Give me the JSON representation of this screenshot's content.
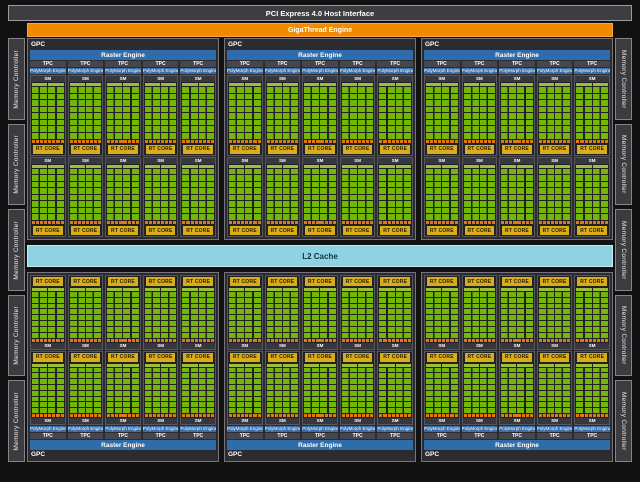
{
  "pci": {
    "label": "PCI Express 4.0 Host Interface"
  },
  "gigathread": {
    "label": "GigaThread Engine"
  },
  "l2": {
    "label": "L2 Cache"
  },
  "memory_controller": {
    "label": "Memory Controller",
    "per_side": 5,
    "sides": [
      "left",
      "right"
    ]
  },
  "gpc": {
    "label": "GPC",
    "raster_label": "Raster Engine",
    "tpc_label": "TPC",
    "polymorph_label": "PolyMorph Engine",
    "sm_label": "SM",
    "rt_core_label": "RT CORE",
    "top_row_count": 3,
    "bottom_row_count": 3,
    "tpcs_per_gpc": 5,
    "sms_per_tpc": 2,
    "blocks_per_sm": 2,
    "core_rows_per_block": 8,
    "ldst_cells_per_block": 4
  },
  "colors": {
    "bar_bg": "#3d3d42",
    "bar_border": "#9a9aa0",
    "orange": "#f08a00",
    "mc_bg": "#3b3b40",
    "mc_border": "#84848a",
    "gpc_bg": "#2b2b30",
    "gpc_border": "#74747a",
    "raster_blue": "#2e6cab",
    "tpc_gray": "#46464e",
    "poly_blue": "#3a6ea8",
    "sm_bg": "#222226",
    "sm_border": "#56565c",
    "sm_head": "#37373e",
    "block_strip": "#9dbe3a",
    "green": "#73b605",
    "io_orange": "#e07818",
    "rt_yellow": "#d9ad1a",
    "cyan": "#8fd2e2"
  }
}
